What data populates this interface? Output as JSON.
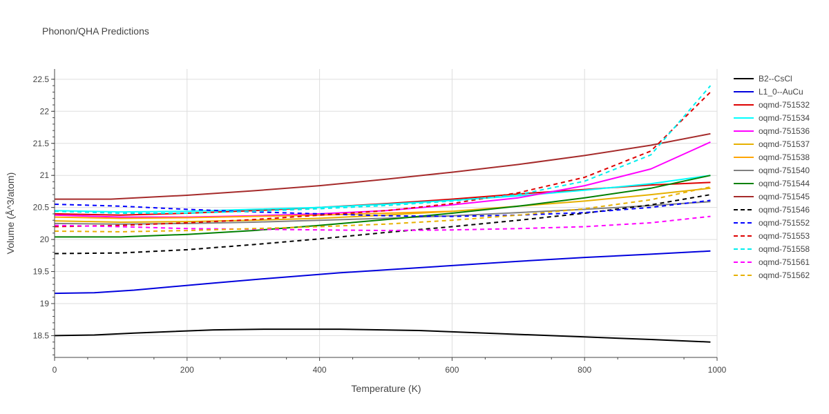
{
  "chart_data": {
    "type": "line",
    "title": "Phonon/QHA Predictions",
    "xlabel": "Temperature (K)",
    "ylabel": "Volume (Å^3/atom)",
    "xlim": [
      0,
      1000
    ],
    "ylim": [
      18.16,
      22.66
    ],
    "xticks": [
      0,
      200,
      400,
      600,
      800,
      1000
    ],
    "yticks": [
      18.5,
      19,
      19.5,
      20,
      20.5,
      21,
      21.5,
      22,
      22.5
    ],
    "grid": true,
    "legend_position": "right",
    "series": [
      {
        "name": "B2--CsCl",
        "color": "#000000",
        "dash": false,
        "x": [
          0,
          60,
          120,
          240,
          320,
          430,
          550,
          700,
          800,
          900,
          990
        ],
        "y": [
          18.5,
          18.51,
          18.54,
          18.59,
          18.6,
          18.6,
          18.58,
          18.52,
          18.48,
          18.44,
          18.4
        ]
      },
      {
        "name": "L1_0--AuCu",
        "color": "#0000dd",
        "dash": false,
        "x": [
          0,
          60,
          120,
          240,
          320,
          430,
          550,
          700,
          800,
          900,
          990
        ],
        "y": [
          19.16,
          19.17,
          19.21,
          19.32,
          19.39,
          19.48,
          19.56,
          19.66,
          19.72,
          19.77,
          19.82
        ]
      },
      {
        "name": "oqmd-751532",
        "color": "#dd0000",
        "dash": false,
        "x": [
          0,
          100,
          200,
          300,
          400,
          500,
          600,
          700,
          800,
          900,
          990
        ],
        "y": [
          20.4,
          20.38,
          20.41,
          20.45,
          20.5,
          20.56,
          20.63,
          20.71,
          20.78,
          20.85,
          20.89
        ]
      },
      {
        "name": "oqmd-751534",
        "color": "#00ffff",
        "dash": false,
        "x": [
          0,
          100,
          200,
          300,
          400,
          500,
          600,
          700,
          800,
          900,
          990
        ],
        "y": [
          20.45,
          20.43,
          20.44,
          20.47,
          20.5,
          20.55,
          20.61,
          20.68,
          20.77,
          20.87,
          21.0
        ]
      },
      {
        "name": "oqmd-751536",
        "color": "#ff00ff",
        "dash": false,
        "x": [
          0,
          100,
          200,
          300,
          400,
          500,
          600,
          700,
          800,
          900,
          990
        ],
        "y": [
          20.38,
          20.35,
          20.35,
          20.37,
          20.4,
          20.45,
          20.54,
          20.65,
          20.84,
          21.1,
          21.52
        ]
      },
      {
        "name": "oqmd-751537",
        "color": "#e6b000",
        "dash": false,
        "x": [
          0,
          100,
          200,
          300,
          400,
          500,
          600,
          700,
          800,
          900,
          990
        ],
        "y": [
          20.29,
          20.27,
          20.28,
          20.3,
          20.33,
          20.38,
          20.44,
          20.52,
          20.6,
          20.7,
          20.8
        ]
      },
      {
        "name": "oqmd-751538",
        "color": "#ffa500",
        "dash": false,
        "x": [
          0,
          100,
          200,
          300,
          400,
          500,
          600
        ],
        "y": [
          20.35,
          20.33,
          20.34,
          20.36,
          20.38,
          20.41,
          20.44
        ]
      },
      {
        "name": "oqmd-751540",
        "color": "#808080",
        "dash": false,
        "x": [
          0,
          100,
          200,
          300,
          400,
          500,
          600,
          700,
          800,
          900,
          990
        ],
        "y": [
          20.25,
          20.24,
          20.25,
          20.27,
          20.3,
          20.33,
          20.37,
          20.42,
          20.47,
          20.53,
          20.59
        ]
      },
      {
        "name": "oqmd-751544",
        "color": "#008000",
        "dash": false,
        "x": [
          0,
          100,
          200,
          300,
          400,
          500,
          600,
          700,
          800,
          900,
          990
        ],
        "y": [
          20.04,
          20.04,
          20.08,
          20.14,
          20.22,
          20.31,
          20.41,
          20.52,
          20.65,
          20.8,
          21.0
        ]
      },
      {
        "name": "oqmd-751545",
        "color": "#a52a2a",
        "dash": false,
        "x": [
          0,
          85,
          200,
          300,
          400,
          500,
          600,
          700,
          800,
          900,
          990
        ],
        "y": [
          20.63,
          20.63,
          20.69,
          20.76,
          20.84,
          20.94,
          21.05,
          21.17,
          21.31,
          21.47,
          21.65
        ]
      },
      {
        "name": "oqmd-751546",
        "color": "#000000",
        "dash": true,
        "x": [
          0,
          100,
          200,
          300,
          400,
          500,
          600,
          700,
          800,
          900,
          990
        ],
        "y": [
          19.78,
          19.79,
          19.84,
          19.92,
          20.01,
          20.11,
          20.2,
          20.3,
          20.41,
          20.54,
          20.7
        ]
      },
      {
        "name": "oqmd-751552",
        "color": "#0000ff",
        "dash": true,
        "x": [
          0,
          100,
          200,
          300,
          400,
          500,
          600,
          700,
          800,
          900,
          990
        ],
        "y": [
          20.55,
          20.52,
          20.47,
          20.43,
          20.4,
          20.37,
          20.36,
          20.38,
          20.42,
          20.5,
          20.61
        ]
      },
      {
        "name": "oqmd-751553",
        "color": "#dd0000",
        "dash": true,
        "x": [
          0,
          100,
          200,
          300,
          400,
          500,
          600,
          700,
          800,
          900,
          990
        ],
        "y": [
          20.2,
          20.22,
          20.26,
          20.31,
          20.38,
          20.45,
          20.56,
          20.73,
          20.97,
          21.38,
          22.3
        ]
      },
      {
        "name": "oqmd-751558",
        "color": "#00eeee",
        "dash": true,
        "x": [
          0,
          100,
          200,
          300,
          400,
          500,
          600,
          700,
          800,
          900,
          990
        ],
        "y": [
          20.44,
          20.41,
          20.41,
          20.44,
          20.48,
          20.53,
          20.6,
          20.7,
          20.91,
          21.32,
          22.4
        ]
      },
      {
        "name": "oqmd-751561",
        "color": "#ff00ff",
        "dash": true,
        "x": [
          0,
          100,
          200,
          300,
          400,
          500,
          600,
          700,
          800,
          900,
          990
        ],
        "y": [
          20.22,
          20.2,
          20.17,
          20.16,
          20.15,
          20.14,
          20.15,
          20.17,
          20.2,
          20.26,
          20.36
        ]
      },
      {
        "name": "oqmd-751562",
        "color": "#e6b000",
        "dash": true,
        "x": [
          0,
          100,
          200,
          300,
          400,
          500,
          600,
          700,
          800,
          900,
          990
        ],
        "y": [
          20.13,
          20.12,
          20.14,
          20.17,
          20.2,
          20.24,
          20.3,
          20.38,
          20.48,
          20.62,
          20.82
        ]
      }
    ]
  }
}
